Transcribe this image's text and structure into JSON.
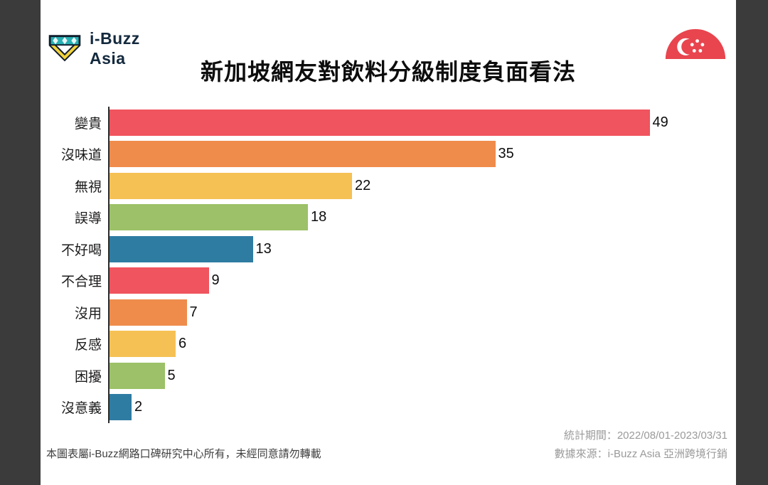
{
  "page": {
    "frame_color": "#3b3b3b",
    "background": "#ffffff"
  },
  "header": {
    "logo": {
      "brand_line1": "i-Buzz",
      "brand_line2": "Asia"
    },
    "title": "新加坡網友對飲料分級制度負面看法",
    "flag": "singapore-flag"
  },
  "chart_data": {
    "type": "bar",
    "orientation": "horizontal",
    "title": "新加坡網友對飲料分級制度負面看法",
    "categories": [
      "變貴",
      "沒味道",
      "無視",
      "誤導",
      "不好喝",
      "不合理",
      "沒用",
      "反感",
      "困擾",
      "沒意義"
    ],
    "values": [
      49,
      35,
      22,
      18,
      13,
      9,
      7,
      6,
      5,
      2
    ],
    "bar_colors": [
      "#f0545e",
      "#ef8c4c",
      "#f5c155",
      "#9cc168",
      "#2f7ca3",
      "#f0545e",
      "#ef8c4c",
      "#f5c155",
      "#9cc168",
      "#2f7ca3"
    ],
    "xlim": [
      0,
      52
    ],
    "value_labels_shown": true,
    "grid": false,
    "legend": false
  },
  "footer": {
    "copyright": "本圖表屬i-Buzz網路口碑研究中心所有，未經同意請勿轉載",
    "stats_period": "統計期間：2022/08/01-2023/03/31",
    "data_source": "數據來源：i-Buzz Asia 亞洲跨境行銷"
  }
}
